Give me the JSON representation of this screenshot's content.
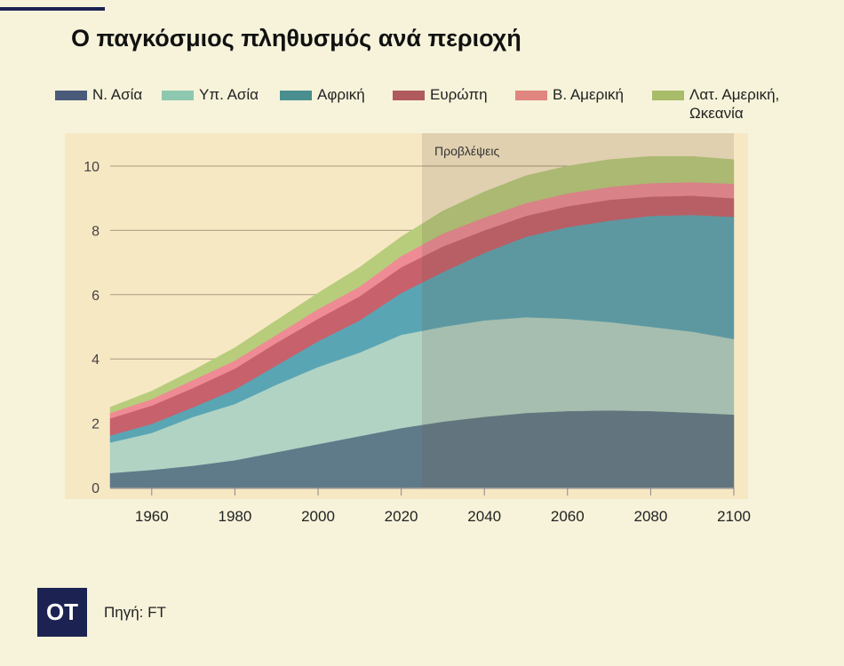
{
  "title": "Ο παγκόσμιος πληθυσμός ανά περιοχή",
  "source": "Πηγή: FT",
  "logo_text": "OT",
  "chart_data": {
    "type": "area",
    "stacked": true,
    "title": "Ο παγκόσμιος πληθυσμός ανά περιοχή",
    "xlabel": "",
    "ylabel": "",
    "x": [
      1950,
      1960,
      1970,
      1980,
      1990,
      2000,
      2010,
      2020,
      2030,
      2040,
      2050,
      2060,
      2070,
      2080,
      2090,
      2100
    ],
    "xlim": [
      1950,
      2100
    ],
    "ylim": [
      0,
      10.5
    ],
    "xticks": [
      1960,
      1980,
      2000,
      2020,
      2040,
      2060,
      2080,
      2100
    ],
    "yticks": [
      0,
      2,
      4,
      6,
      8,
      10
    ],
    "forecast_start": 2025,
    "annotation": "Προβλέψεις",
    "legend_position": "top",
    "series": [
      {
        "name": "Ν. Ασία",
        "color": "#5f7b8a",
        "legend_color": "#4a5a7a",
        "values": [
          0.45,
          0.55,
          0.68,
          0.85,
          1.1,
          1.35,
          1.6,
          1.85,
          2.05,
          2.2,
          2.32,
          2.38,
          2.4,
          2.38,
          2.33,
          2.27
        ]
      },
      {
        "name": "Υπ. Ασία",
        "color": "#b0d3c4",
        "legend_color": "#8fc8b0",
        "values": [
          0.95,
          1.15,
          1.52,
          1.75,
          2.1,
          2.4,
          2.6,
          2.9,
          2.95,
          3.0,
          2.98,
          2.87,
          2.75,
          2.62,
          2.52,
          2.35
        ]
      },
      {
        "name": "Αφρική",
        "color": "#5aa5b4",
        "legend_color": "#4a8f8f",
        "values": [
          0.22,
          0.28,
          0.3,
          0.45,
          0.6,
          0.8,
          1.0,
          1.3,
          1.7,
          2.1,
          2.5,
          2.85,
          3.15,
          3.45,
          3.63,
          3.8
        ]
      },
      {
        "name": "Ευρώπη",
        "color": "#c7616b",
        "legend_color": "#b05a5e",
        "values": [
          0.53,
          0.57,
          0.6,
          0.65,
          0.7,
          0.7,
          0.75,
          0.8,
          0.8,
          0.7,
          0.65,
          0.65,
          0.65,
          0.6,
          0.6,
          0.58
        ]
      },
      {
        "name": "Β. Αμερική",
        "color": "#ee8b95",
        "legend_color": "#e0857f",
        "values": [
          0.17,
          0.2,
          0.25,
          0.25,
          0.25,
          0.3,
          0.3,
          0.35,
          0.4,
          0.4,
          0.4,
          0.4,
          0.4,
          0.42,
          0.42,
          0.45
        ]
      },
      {
        "name": "Λατ. Αμερική, Ωκεανία",
        "color": "#b7cd7b",
        "legend_color": "#a9bc6a",
        "values": [
          0.18,
          0.25,
          0.3,
          0.4,
          0.45,
          0.5,
          0.6,
          0.6,
          0.7,
          0.8,
          0.85,
          0.85,
          0.85,
          0.83,
          0.8,
          0.75
        ]
      }
    ]
  }
}
